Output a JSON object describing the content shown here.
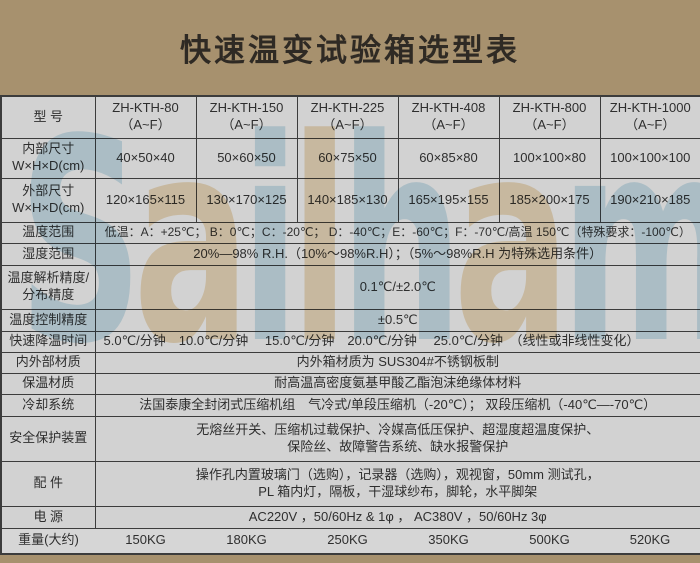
{
  "title": "快速温变试验箱选型表",
  "colors": {
    "page_bg": "#a7916e",
    "cell_bg": "#d2d2d2",
    "border": "#3c3c3c",
    "text": "#2e2e2e",
    "watermark_blue": "#a9d2e3",
    "watermark_orange": "#e8c68e"
  },
  "watermark": {
    "text": "Sailham",
    "letters": [
      {
        "ch": "S",
        "color": "watermark_blue"
      },
      {
        "ch": "a",
        "color": "watermark_orange"
      },
      {
        "ch": "i",
        "color": "watermark_blue"
      },
      {
        "ch": "l",
        "color": "watermark_orange"
      },
      {
        "ch": "h",
        "color": "watermark_blue"
      },
      {
        "ch": "a",
        "color": "watermark_orange"
      },
      {
        "ch": "m",
        "color": "watermark_blue"
      }
    ]
  },
  "table": {
    "labels": {
      "model": "型  号",
      "inner": "内部尺寸\nW×H×D(cm)",
      "outer": "外部尺寸\nW×H×D(cm)",
      "temp_range": "温度范围",
      "humidity": "湿度范围",
      "resolution": "温度解析精度/\n分布精度",
      "control": "温度控制精度",
      "cooling_rate": "快速降温时间",
      "material": "内外部材质",
      "insulation": "保温材质",
      "cooling_sys": "冷却系统",
      "safety": "安全保护装置",
      "accessories": "配  件",
      "power": "电  源",
      "weight": "重量(大约)"
    },
    "models": [
      {
        "name": "ZH-KTH-80",
        "grade": "（A~F）"
      },
      {
        "name": "ZH-KTH-150",
        "grade": "（A~F）"
      },
      {
        "name": "ZH-KTH-225",
        "grade": "（A~F）"
      },
      {
        "name": "ZH-KTH-408",
        "grade": "（A~F）"
      },
      {
        "name": "ZH-KTH-800",
        "grade": "（A~F）"
      },
      {
        "name": "ZH-KTH-1000",
        "grade": "（A~F）"
      }
    ],
    "inner_dims": [
      "40×50×40",
      "50×60×50",
      "60×75×50",
      "60×85×80",
      "100×100×80",
      "100×100×100"
    ],
    "outer_dims": [
      "120×165×115",
      "130×170×125",
      "140×185×130",
      "165×195×155",
      "185×200×175",
      "190×210×185"
    ],
    "values": {
      "temp_range": "低温：A：+25℃； B：0℃；C：-20℃； D：-40℃；E：-60℃；F：-70℃/高温 150℃（特殊要求：-100℃）",
      "humidity": "20%—98% R.H.（10%～98%R.H）；（5%～98%R.H 为特殊选用条件）",
      "resolution": "0.1℃/±2.0℃",
      "control": "±0.5℃",
      "cooling_rate": "5.0℃/分钟　10.0℃/分钟　 15.0℃/分钟　20.0℃/分钟　 25.0℃/分钟　（线性或非线性变化）",
      "material": "内外箱材质为 SUS304#不锈钢板制",
      "insulation": "耐高温高密度氨基甲酸乙酯泡沫绝缘体材料",
      "cooling_sys": "法国泰康全封闭式压缩机组　气冷式/单段压缩机（-20℃）； 双段压缩机（-40℃—-70℃）",
      "safety": "无熔丝开关、压缩机过载保护、冷媒高低压保护、超湿度超温度保护、\n保险丝、故障警告系统、缺水报警保护",
      "accessories": "操作孔内置玻璃门（选购），记录器（选购），观视窗，50mm 测试孔，\nPL 箱内灯，隔板，干湿球纱布，脚轮，水平脚架",
      "power": "AC220V ，50/60Hz & 1φ ， AC380V ，50/60Hz 3φ"
    },
    "weights": [
      "150KG",
      "180KG",
      "250KG",
      "350KG",
      "500KG",
      "520KG"
    ]
  }
}
